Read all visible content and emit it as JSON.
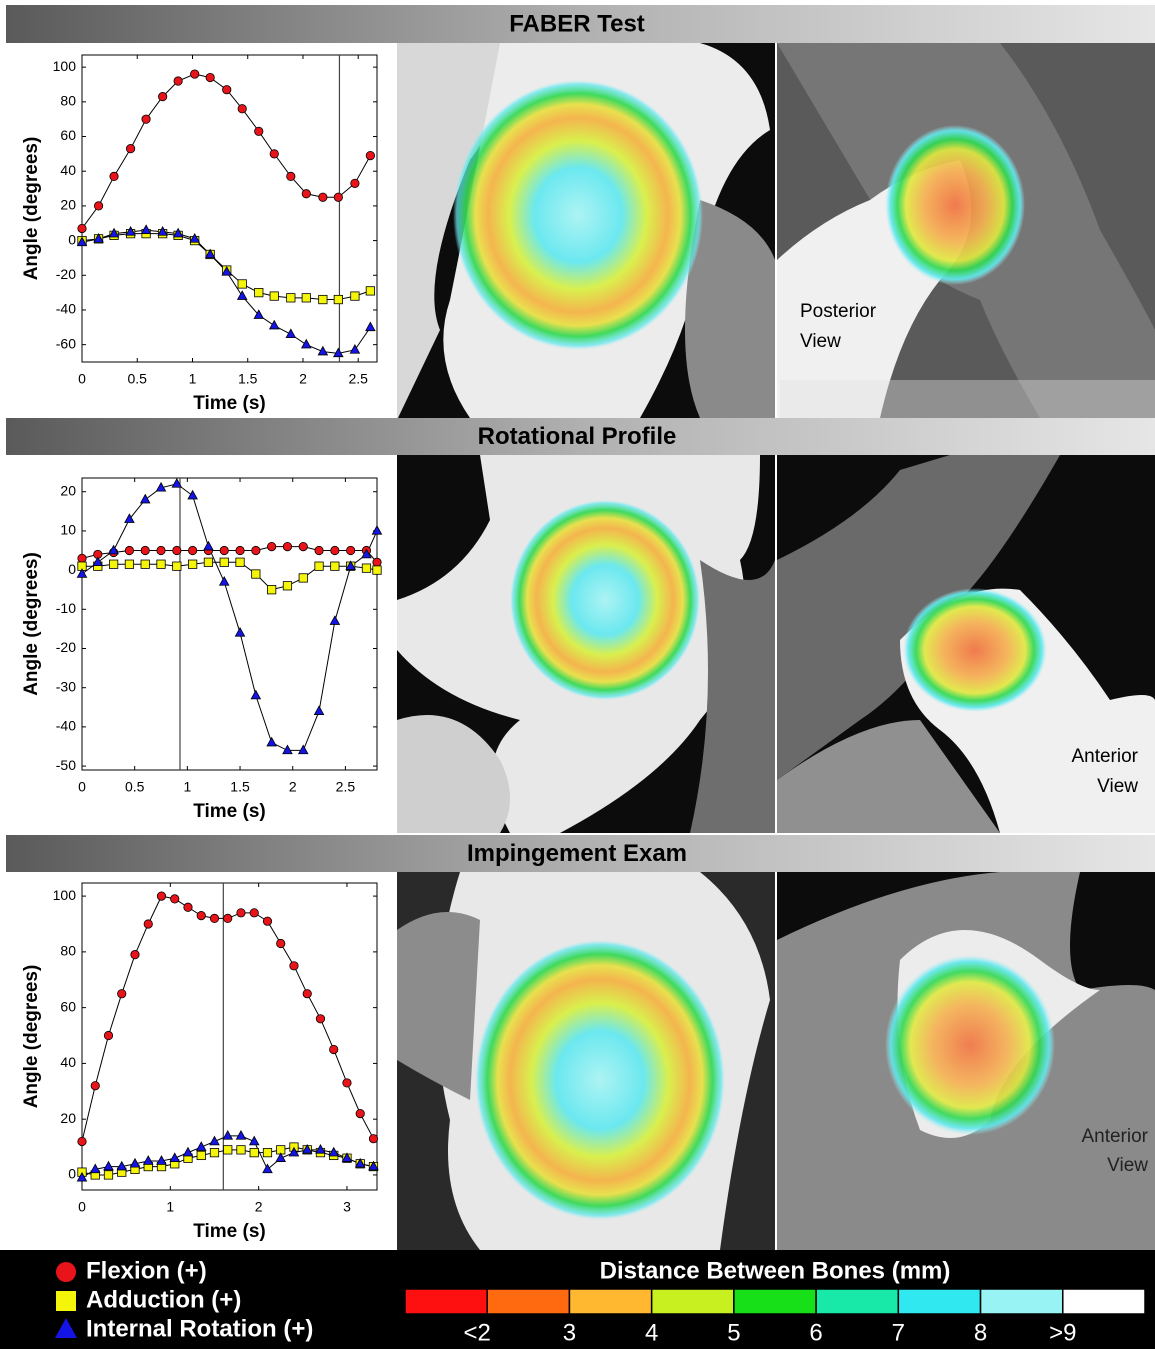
{
  "chart_data": [
    {
      "type": "line",
      "title": "FABER Test",
      "xlabel": "Time (s)",
      "ylabel": "Angle (degrees)",
      "x": [
        0,
        0.15,
        0.29,
        0.44,
        0.58,
        0.73,
        0.87,
        1.02,
        1.16,
        1.31,
        1.45,
        1.6,
        1.74,
        1.89,
        2.03,
        2.18,
        2.32,
        2.47,
        2.61
      ],
      "series": [
        {
          "color": "#e8141a",
          "marker": "circle",
          "values": [
            7,
            20,
            37,
            53,
            70,
            83,
            92,
            96,
            94,
            87,
            76,
            63,
            50,
            37,
            27,
            25,
            25,
            33,
            49
          ]
        },
        {
          "color": "#f5f50a",
          "marker": "square",
          "values": [
            0,
            1,
            3,
            4,
            4,
            4,
            3,
            0,
            -8,
            -17,
            -25,
            -30,
            -32,
            -33,
            -33,
            -34,
            -34,
            -32,
            -29
          ]
        },
        {
          "color": "#1414e6",
          "marker": "triangle",
          "values": [
            -1,
            1,
            4,
            5,
            6,
            5,
            4,
            1,
            -8,
            -18,
            -32,
            -43,
            -49,
            -54,
            -60,
            -64,
            -65,
            -63,
            -50
          ]
        }
      ],
      "xlim": [
        0,
        2.67
      ],
      "ylim": [
        -70,
        107
      ],
      "xticks": [
        0,
        0.5,
        1,
        1.5,
        2,
        2.5
      ],
      "yticks": [
        -60,
        -40,
        -20,
        0,
        20,
        40,
        60,
        80,
        100
      ],
      "time_marker": 2.33
    },
    {
      "type": "line",
      "title": "Rotational Profile",
      "xlabel": "Time (s)",
      "ylabel": "Angle (degrees)",
      "x": [
        0,
        0.15,
        0.3,
        0.45,
        0.6,
        0.75,
        0.9,
        1.05,
        1.2,
        1.35,
        1.5,
        1.65,
        1.8,
        1.95,
        2.1,
        2.25,
        2.4,
        2.55,
        2.7,
        2.8
      ],
      "series": [
        {
          "color": "#e8141a",
          "marker": "circle",
          "values": [
            3,
            4,
            4.5,
            5,
            5,
            5,
            5,
            5,
            5,
            5,
            5,
            5,
            6,
            6,
            6,
            5,
            5,
            5,
            5,
            2
          ]
        },
        {
          "color": "#f5f50a",
          "marker": "square",
          "values": [
            1,
            1,
            1.5,
            1.5,
            1.5,
            1.5,
            1,
            1.5,
            2,
            2,
            2,
            -1,
            -5,
            -4,
            -2,
            1,
            1,
            1,
            0.5,
            0
          ]
        },
        {
          "color": "#1414e6",
          "marker": "triangle",
          "values": [
            -1,
            2,
            5,
            13,
            18,
            21,
            22,
            19,
            6,
            -3,
            -16,
            -32,
            -44,
            -46,
            -46,
            -36,
            -13,
            1,
            4,
            10
          ]
        }
      ],
      "xlim": [
        0,
        2.8
      ],
      "ylim": [
        -51,
        23.5
      ],
      "xticks": [
        0,
        0.5,
        1,
        1.5,
        2,
        2.5
      ],
      "yticks": [
        -50,
        -40,
        -30,
        -20,
        -10,
        0,
        10,
        20
      ],
      "time_marker": 0.93
    },
    {
      "type": "line",
      "title": "Impingement Exam",
      "xlabel": "Time (s)",
      "ylabel": "Angle (degrees)",
      "x": [
        0,
        0.15,
        0.3,
        0.45,
        0.6,
        0.75,
        0.9,
        1.05,
        1.2,
        1.35,
        1.5,
        1.65,
        1.8,
        1.95,
        2.1,
        2.25,
        2.4,
        2.55,
        2.7,
        2.85,
        3,
        3.15,
        3.3
      ],
      "series": [
        {
          "color": "#e8141a",
          "marker": "circle",
          "values": [
            12,
            32,
            50,
            65,
            79,
            90,
            100,
            99,
            96,
            93,
            92,
            92,
            94,
            94,
            91,
            83,
            75,
            65,
            56,
            45,
            33,
            22,
            13
          ]
        },
        {
          "color": "#f5f50a",
          "marker": "square",
          "values": [
            1,
            0,
            0,
            1,
            2,
            3,
            3,
            4,
            6,
            7,
            8,
            9,
            9,
            8,
            8,
            9,
            10,
            9,
            8,
            7,
            6,
            4,
            3
          ]
        },
        {
          "color": "#1414e6",
          "marker": "triangle",
          "values": [
            -1,
            2,
            3,
            3,
            4,
            5,
            5,
            6,
            8,
            10,
            12,
            14,
            14,
            12,
            2,
            6,
            8,
            9,
            9,
            8,
            6,
            4,
            3
          ]
        }
      ],
      "xlim": [
        0,
        3.34
      ],
      "ylim": [
        -5.4,
        104.7
      ],
      "xticks": [
        0,
        1,
        2,
        3
      ],
      "yticks": [
        0,
        20,
        40,
        60,
        80,
        100
      ],
      "time_marker": 1.6
    }
  ],
  "legend": [
    {
      "name": "Flexion (+)",
      "color": "#e8141a",
      "marker": "circle"
    },
    {
      "name": "Adduction (+)",
      "color": "#f5f50a",
      "marker": "square"
    },
    {
      "name": "Internal Rotation (+)",
      "color": "#1414e6",
      "marker": "triangle"
    }
  ],
  "colorbar": {
    "title": "Distance Between Bones (mm)",
    "colors": [
      "#ff1010",
      "#ff6a10",
      "#ffb830",
      "#c8f020",
      "#18e018",
      "#18e8a8",
      "#30e8f0",
      "#98f4f4",
      "#ffffff"
    ],
    "labels": [
      "<2",
      "3",
      "4",
      "5",
      "6",
      "7",
      "8",
      ">9"
    ]
  },
  "views": [
    [
      "Posterior",
      "View"
    ],
    [
      "Anterior",
      "View"
    ],
    [
      "Anterior",
      "View"
    ]
  ]
}
